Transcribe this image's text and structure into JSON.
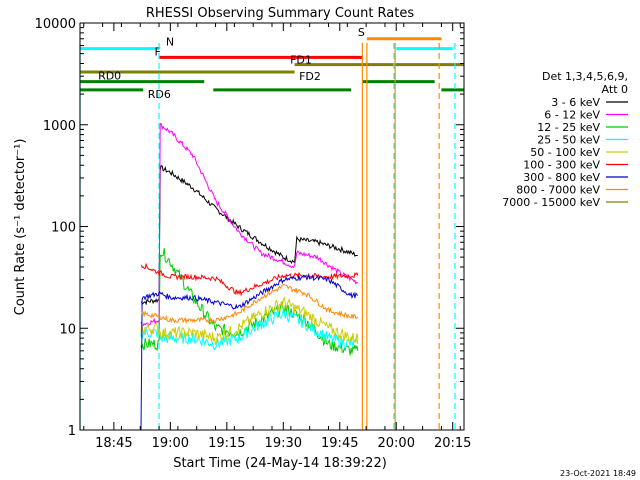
{
  "chart_data": {
    "type": "line",
    "title": "RHESSI Observing Summary Count Rates",
    "xlabel": "Start Time (24-May-14 18:39:22)",
    "ylabel": "Count Rate (s⁻¹ detector⁻¹)",
    "yscale": "log",
    "ylim": [
      1,
      10000
    ],
    "xlim_minutes": [
      18.6,
      20.3
    ],
    "x_unit": "hours (decimal, UT)",
    "x_ticks": [
      {
        "value": 18.75,
        "label": "18:45"
      },
      {
        "value": 19.0,
        "label": "19:00"
      },
      {
        "value": 19.25,
        "label": "19:15"
      },
      {
        "value": 19.5,
        "label": "19:30"
      },
      {
        "value": 19.75,
        "label": "19:45"
      },
      {
        "value": 20.0,
        "label": "20:00"
      },
      {
        "value": 20.25,
        "label": "20:15"
      }
    ],
    "y_ticks": [
      {
        "value": 1,
        "label": "1"
      },
      {
        "value": 10,
        "label": "10"
      },
      {
        "value": 100,
        "label": "100"
      },
      {
        "value": 1000,
        "label": "1000"
      },
      {
        "value": 10000,
        "label": "10000"
      }
    ],
    "legend_header": [
      "Det 1,3,4,5,6,9,",
      "Att 0"
    ],
    "series": [
      {
        "name": "3 - 6 keV",
        "color": "#000000",
        "x": [
          18.87,
          18.875,
          18.95,
          18.955,
          19.0,
          19.1,
          19.2,
          19.3,
          19.4,
          19.5,
          19.55,
          19.56,
          19.65,
          19.75,
          19.83
        ],
        "y": [
          18,
          18,
          19,
          380,
          340,
          240,
          150,
          100,
          70,
          50,
          45,
          75,
          70,
          60,
          52
        ]
      },
      {
        "name": "6 - 12 keV",
        "color": "#ff00ff",
        "x": [
          18.87,
          18.875,
          18.95,
          18.955,
          19.0,
          19.1,
          19.2,
          19.3,
          19.4,
          19.5,
          19.55,
          19.56,
          19.65,
          19.75,
          19.83
        ],
        "y": [
          11,
          11,
          12,
          1000,
          850,
          500,
          180,
          90,
          55,
          45,
          40,
          55,
          50,
          35,
          28
        ]
      },
      {
        "name": "12 - 25 keV",
        "color": "#00cc00",
        "x": [
          18.87,
          18.875,
          18.95,
          18.955,
          19.0,
          19.1,
          19.2,
          19.3,
          19.4,
          19.5,
          19.6,
          19.7,
          19.8,
          19.83
        ],
        "y": [
          7,
          7,
          7,
          60,
          45,
          20,
          10,
          9,
          12,
          16,
          12,
          7,
          6,
          6
        ]
      },
      {
        "name": "25 - 50 keV",
        "color": "#00ffff",
        "x": [
          18.87,
          18.875,
          18.95,
          18.955,
          19.0,
          19.1,
          19.2,
          19.3,
          19.4,
          19.5,
          19.6,
          19.7,
          19.8,
          19.83
        ],
        "y": [
          9,
          9,
          9,
          8,
          8,
          8,
          7,
          8,
          11,
          14,
          11,
          8,
          7,
          7
        ]
      },
      {
        "name": "50 - 100 keV",
        "color": "#cccc00",
        "x": [
          18.87,
          18.875,
          18.95,
          18.955,
          19.0,
          19.1,
          19.2,
          19.3,
          19.4,
          19.5,
          19.6,
          19.7,
          19.8,
          19.83
        ],
        "y": [
          10,
          10,
          10,
          9,
          9,
          9,
          8,
          10,
          14,
          18,
          14,
          10,
          8,
          8
        ]
      },
      {
        "name": "100 - 300 keV",
        "color": "#ff0000",
        "x": [
          18.87,
          18.875,
          18.95,
          18.955,
          19.0,
          19.1,
          19.2,
          19.3,
          19.4,
          19.5,
          19.6,
          19.7,
          19.8,
          19.83
        ],
        "y": [
          42,
          42,
          35,
          35,
          32,
          32,
          31,
          22,
          27,
          33,
          33,
          32,
          33,
          33
        ]
      },
      {
        "name": "300 - 800 keV",
        "color": "#0000cc",
        "x": [
          18.87,
          18.875,
          18.95,
          18.955,
          19.0,
          19.1,
          19.2,
          19.3,
          19.4,
          19.5,
          19.6,
          19.7,
          19.8,
          19.83
        ],
        "y": [
          1,
          20,
          22,
          22,
          20,
          20,
          18,
          16,
          22,
          30,
          32,
          30,
          21,
          21
        ]
      },
      {
        "name": "800 - 7000 keV",
        "color": "#ff8800",
        "x": [
          18.87,
          18.875,
          18.95,
          18.955,
          19.0,
          19.1,
          19.2,
          19.3,
          19.4,
          19.5,
          19.6,
          19.7,
          19.8,
          19.83
        ],
        "y": [
          14,
          14,
          13,
          13,
          12,
          12,
          12,
          14,
          20,
          26,
          22,
          15,
          13,
          13
        ]
      },
      {
        "name": "7000 - 15000 keV",
        "color": "#808000",
        "x": [],
        "y": []
      }
    ],
    "flag_bars": [
      {
        "label": "N",
        "color": "#00ffff",
        "segments": [
          [
            18.6,
            18.95
          ],
          [
            20.0,
            20.25
          ]
        ],
        "y": 5600
      },
      {
        "label": "S",
        "color": "#ff8800",
        "segments": [
          [
            19.87,
            20.2
          ]
        ],
        "y": 7000
      },
      {
        "label": "F",
        "color": "#ff0000",
        "segments": [
          [
            18.95,
            19.85
          ]
        ],
        "y": 4600
      },
      {
        "label": "FD1",
        "color": "#808000",
        "segments": [
          [
            19.55,
            20.3
          ]
        ],
        "y": 3900
      },
      {
        "label": "FD2",
        "color": "#808000",
        "segments": [
          [
            18.6,
            19.55
          ]
        ],
        "y": 3300
      },
      {
        "label": "RD0",
        "color": "#008000",
        "segments": [
          [
            18.6,
            19.15
          ],
          [
            19.85,
            20.17
          ]
        ],
        "y": 2650
      },
      {
        "label": "RD6",
        "color": "#008000",
        "segments": [
          [
            18.6,
            18.88
          ],
          [
            19.19,
            19.8
          ],
          [
            20.2,
            20.3
          ]
        ],
        "y": 2200
      }
    ],
    "vertical_markers": [
      {
        "x": 18.6,
        "color": "#00ffff",
        "style": "solid"
      },
      {
        "x": 18.95,
        "color": "#00ffff",
        "style": "dashed"
      },
      {
        "x": 19.85,
        "color": "#ff8800",
        "style": "solid"
      },
      {
        "x": 19.87,
        "color": "#ff8800",
        "style": "solid"
      },
      {
        "x": 19.99,
        "color": "#00ffff",
        "style": "dashed"
      },
      {
        "x": 19.995,
        "color": "#ff8800",
        "style": "solid"
      },
      {
        "x": 20.19,
        "color": "#ff8800",
        "style": "dashed"
      },
      {
        "x": 20.26,
        "color": "#00ffff",
        "style": "dashed"
      }
    ],
    "footer_date": "23-Oct-2021 18:49"
  }
}
